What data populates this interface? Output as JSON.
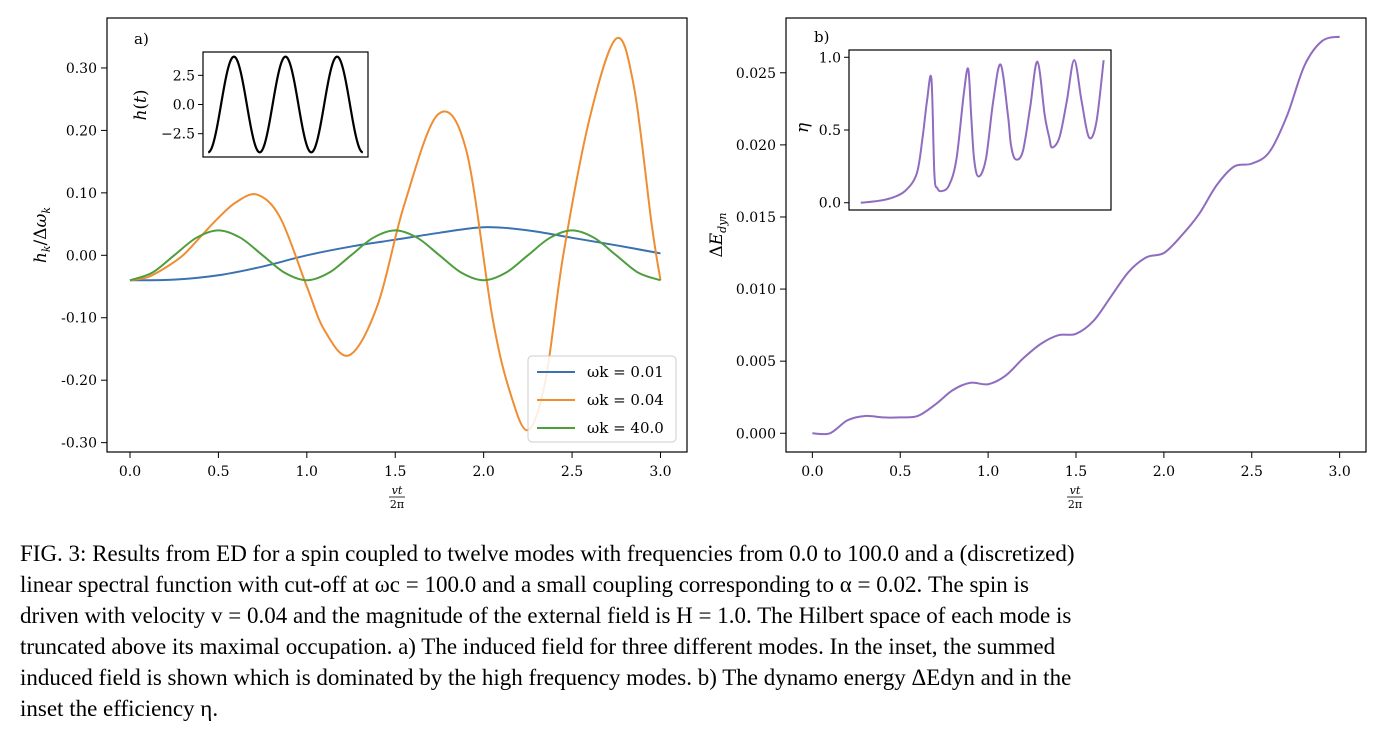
{
  "caption": {
    "lines": [
      "FIG. 3: Results from ED for a spin coupled to twelve modes with frequencies from 0.0 to 100.0 and a (discretized)",
      "linear spectral function with cut-off at ωc = 100.0 and a small coupling corresponding to α = 0.02. The spin is",
      "driven with velocity v = 0.04 and the magnitude of the external field is H = 1.0. The Hilbert space of each mode is",
      "truncated above its maximal occupation. a) The induced field for three different modes. In the inset, the summed",
      "induced field is shown which is dominated by the high frequency modes. b) The dynamo energy ΔEdyn and in the",
      "inset the efficiency η."
    ]
  },
  "chart_data": [
    {
      "panel_label": "a)",
      "type": "line",
      "xlabel": "vt/2π",
      "ylabel": "hk/Δωk",
      "xlim": [
        -0.13,
        3.15
      ],
      "ylim": [
        -0.315,
        0.38
      ],
      "xticks": [
        0.0,
        0.5,
        1.0,
        1.5,
        2.0,
        2.5,
        3.0
      ],
      "xtick_labels": [
        "0.0",
        "0.5",
        "1.0",
        "1.5",
        "2.0",
        "2.5",
        "3.0"
      ],
      "yticks": [
        0.3,
        0.2,
        0.1,
        0.0,
        -0.1,
        -0.2,
        -0.3
      ],
      "ytick_labels": [
        "0.30",
        "0.20",
        "0.10",
        "0.00",
        "-0.10",
        "-0.20",
        "-0.30"
      ],
      "grid": false,
      "legend_position": "lower-right",
      "series": [
        {
          "name": "ωk = 0.01",
          "color": "#3a72b0",
          "x": [
            0.0,
            0.25,
            0.5,
            0.75,
            1.0,
            1.25,
            1.5,
            1.75,
            2.0,
            2.25,
            2.5,
            2.75,
            3.0
          ],
          "y": [
            -0.04,
            -0.039,
            -0.032,
            -0.018,
            0.0,
            0.014,
            0.025,
            0.036,
            0.045,
            0.04,
            0.028,
            0.016,
            0.003
          ]
        },
        {
          "name": "ωk = 0.04",
          "color": "#ef8d33",
          "x": [
            0.0,
            0.1,
            0.2,
            0.3,
            0.4,
            0.5,
            0.6,
            0.72,
            0.85,
            1.0,
            1.1,
            1.24,
            1.4,
            1.55,
            1.74,
            1.9,
            2.05,
            2.15,
            2.25,
            2.35,
            2.45,
            2.6,
            2.75,
            2.85,
            2.95,
            3.0
          ],
          "y": [
            -0.04,
            -0.035,
            -0.02,
            0.0,
            0.03,
            0.06,
            0.085,
            0.097,
            0.06,
            -0.05,
            -0.12,
            -0.16,
            -0.08,
            0.08,
            0.225,
            0.17,
            -0.1,
            -0.22,
            -0.28,
            -0.2,
            0.0,
            0.22,
            0.347,
            0.27,
            0.05,
            -0.04
          ]
        },
        {
          "name": "ωk = 40.0",
          "color": "#4d9e3c",
          "x": [
            0.0,
            0.125,
            0.25,
            0.375,
            0.5,
            0.625,
            0.75,
            0.875,
            1.0,
            1.125,
            1.25,
            1.375,
            1.5,
            1.625,
            1.75,
            1.875,
            2.0,
            2.125,
            2.25,
            2.375,
            2.5,
            2.625,
            2.75,
            2.875,
            3.0
          ],
          "y": [
            -0.04,
            -0.028,
            0.0,
            0.028,
            0.04,
            0.028,
            0.0,
            -0.028,
            -0.04,
            -0.028,
            0.0,
            0.028,
            0.04,
            0.028,
            0.0,
            -0.028,
            -0.04,
            -0.028,
            0.0,
            0.028,
            0.04,
            0.028,
            0.0,
            -0.028,
            -0.04
          ]
        }
      ],
      "inset": {
        "type": "line",
        "ylabel": "h(t)",
        "yticks": [
          2.5,
          0.0,
          -2.5
        ],
        "ytick_labels": [
          "2.5",
          "0.0",
          "−2.5"
        ],
        "ylim": [
          -4.5,
          4.5
        ],
        "xlim": [
          -0.1,
          3.1
        ],
        "color": "#000000",
        "cycles": 3,
        "amplitude": 4.1
      }
    },
    {
      "panel_label": "b)",
      "type": "line",
      "xlabel": "vt/2π",
      "ylabel": "ΔEdyn",
      "xlim": [
        -0.15,
        3.15
      ],
      "ylim": [
        -0.0013,
        0.0288
      ],
      "xticks": [
        0.0,
        0.5,
        1.0,
        1.5,
        2.0,
        2.5,
        3.0
      ],
      "xtick_labels": [
        "0.0",
        "0.5",
        "1.0",
        "1.5",
        "2.0",
        "2.5",
        "3.0"
      ],
      "yticks": [
        0.025,
        0.02,
        0.015,
        0.01,
        0.005,
        0.0
      ],
      "ytick_labels": [
        "0.025",
        "0.020",
        "0.015",
        "0.010",
        "0.005",
        "0.000"
      ],
      "grid": false,
      "series": [
        {
          "name": "",
          "color": "#8f6cbf",
          "x": [
            0.0,
            0.1,
            0.2,
            0.3,
            0.4,
            0.5,
            0.6,
            0.7,
            0.8,
            0.9,
            1.0,
            1.1,
            1.2,
            1.3,
            1.4,
            1.5,
            1.6,
            1.7,
            1.8,
            1.9,
            2.0,
            2.1,
            2.2,
            2.3,
            2.4,
            2.5,
            2.6,
            2.7,
            2.8,
            2.9,
            3.0
          ],
          "y": [
            0.0,
            0.0,
            0.0009,
            0.0012,
            0.0011,
            0.0011,
            0.0012,
            0.002,
            0.003,
            0.0035,
            0.0034,
            0.004,
            0.0052,
            0.0062,
            0.0068,
            0.0069,
            0.0078,
            0.0095,
            0.0112,
            0.0122,
            0.0125,
            0.0137,
            0.0152,
            0.0172,
            0.0185,
            0.0187,
            0.0195,
            0.022,
            0.0255,
            0.0272,
            0.0275
          ]
        }
      ],
      "inset": {
        "type": "line",
        "ylabel": "η",
        "yticks": [
          1.0,
          0.5,
          0.0
        ],
        "ytick_labels": [
          "1.0",
          "0.5",
          "0.0"
        ],
        "ylim": [
          -0.05,
          1.05
        ],
        "xlim": [
          -0.08,
          1.7
        ],
        "color": "#8f6cbf",
        "x": [
          0.0,
          0.1,
          0.2,
          0.3,
          0.38,
          0.42,
          0.45,
          0.48,
          0.5,
          0.52,
          0.55,
          0.6,
          0.65,
          0.7,
          0.73,
          0.75,
          0.77,
          0.8,
          0.85,
          0.9,
          0.95,
          1.0,
          1.02,
          1.05,
          1.1,
          1.15,
          1.2,
          1.25,
          1.28,
          1.3,
          1.35,
          1.4,
          1.45,
          1.5,
          1.55,
          1.6,
          1.65
        ],
        "y": [
          0.0,
          0.01,
          0.03,
          0.08,
          0.2,
          0.45,
          0.7,
          0.85,
          0.2,
          0.1,
          0.08,
          0.12,
          0.3,
          0.75,
          0.92,
          0.6,
          0.3,
          0.18,
          0.3,
          0.7,
          0.95,
          0.6,
          0.4,
          0.3,
          0.35,
          0.65,
          0.97,
          0.6,
          0.45,
          0.38,
          0.45,
          0.7,
          0.98,
          0.7,
          0.45,
          0.55,
          0.98
        ]
      }
    }
  ]
}
